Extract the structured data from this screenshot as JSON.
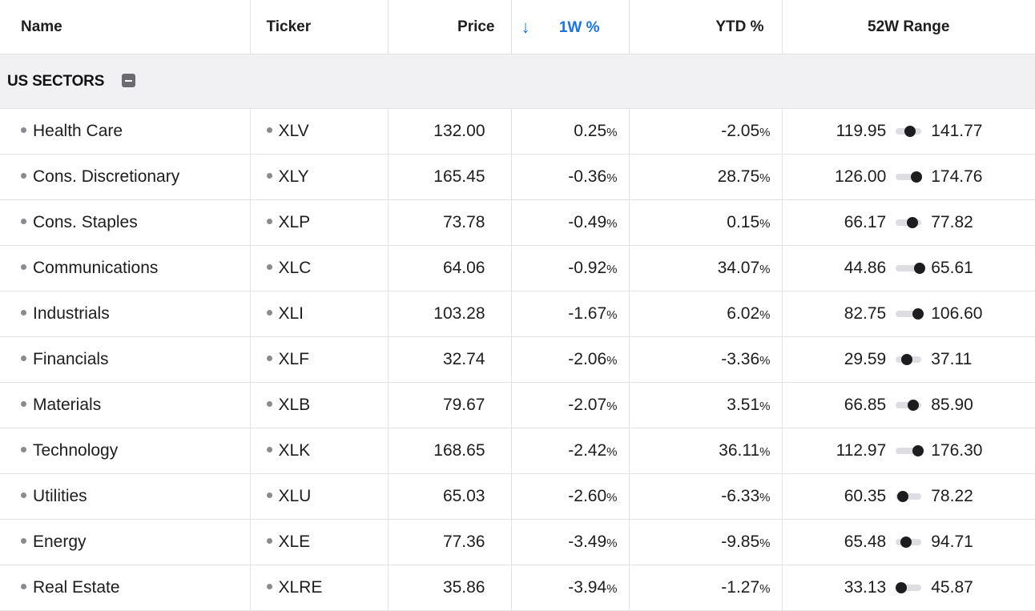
{
  "header": {
    "name": "Name",
    "ticker": "Ticker",
    "price": "Price",
    "sort_arrow": "↓",
    "w1": "1W %",
    "ytd": "YTD %",
    "range": "52W Range"
  },
  "group": {
    "label": "US SECTORS"
  },
  "percent_sign": "%",
  "colors": {
    "positive": "#1f7a3a",
    "negative": "#d93025",
    "sort_accent": "#1a73e8"
  },
  "rows": [
    {
      "name": "Health Care",
      "ticker": "XLV",
      "price": "132.00",
      "w1": "0.25",
      "ytd": "-2.05",
      "low": "119.95",
      "high": "141.77",
      "range_pos": 0.56
    },
    {
      "name": "Cons. Discretionary",
      "ticker": "XLY",
      "price": "165.45",
      "w1": "-0.36",
      "ytd": "28.75",
      "low": "126.00",
      "high": "174.76",
      "range_pos": 0.81
    },
    {
      "name": "Cons. Staples",
      "ticker": "XLP",
      "price": "73.78",
      "w1": "-0.49",
      "ytd": "0.15",
      "low": "66.17",
      "high": "77.82",
      "range_pos": 0.65
    },
    {
      "name": "Communications",
      "ticker": "XLC",
      "price": "64.06",
      "w1": "-0.92",
      "ytd": "34.07",
      "low": "44.86",
      "high": "65.61",
      "range_pos": 0.93
    },
    {
      "name": "Industrials",
      "ticker": "XLI",
      "price": "103.28",
      "w1": "-1.67",
      "ytd": "6.02",
      "low": "82.75",
      "high": "106.60",
      "range_pos": 0.86
    },
    {
      "name": "Financials",
      "ticker": "XLF",
      "price": "32.74",
      "w1": "-2.06",
      "ytd": "-3.36",
      "low": "29.59",
      "high": "37.11",
      "range_pos": 0.42
    },
    {
      "name": "Materials",
      "ticker": "XLB",
      "price": "79.67",
      "w1": "-2.07",
      "ytd": "3.51",
      "low": "66.85",
      "high": "85.90",
      "range_pos": 0.67
    },
    {
      "name": "Technology",
      "ticker": "XLK",
      "price": "168.65",
      "w1": "-2.42",
      "ytd": "36.11",
      "low": "112.97",
      "high": "176.30",
      "range_pos": 0.88
    },
    {
      "name": "Utilities",
      "ticker": "XLU",
      "price": "65.03",
      "w1": "-2.60",
      "ytd": "-6.33",
      "low": "60.35",
      "high": "78.22",
      "range_pos": 0.26
    },
    {
      "name": "Energy",
      "ticker": "XLE",
      "price": "77.36",
      "w1": "-3.49",
      "ytd": "-9.85",
      "low": "65.48",
      "high": "94.71",
      "range_pos": 0.41
    },
    {
      "name": "Real Estate",
      "ticker": "XLRE",
      "price": "35.86",
      "w1": "-3.94",
      "ytd": "-1.27",
      "low": "33.13",
      "high": "45.87",
      "range_pos": 0.22
    }
  ]
}
